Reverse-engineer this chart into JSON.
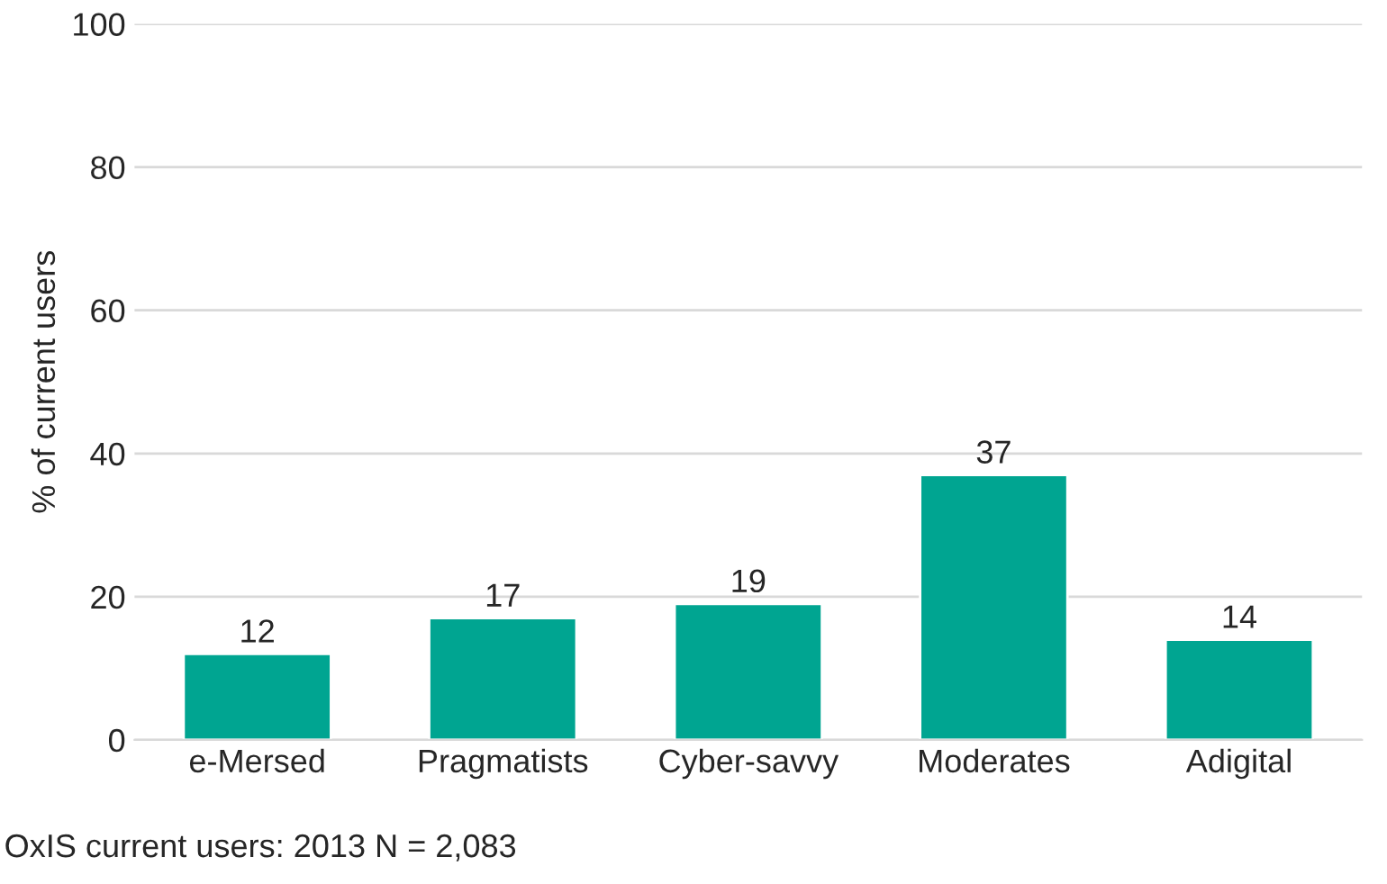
{
  "chart_data": {
    "type": "bar",
    "ylabel": "% of current users",
    "categories": [
      "e-Mersed",
      "Pragmatists",
      "Cyber-savvy",
      "Moderates",
      "Adigital"
    ],
    "values": [
      12,
      17,
      19,
      37,
      14
    ],
    "color": "#00a591",
    "ylim": [
      0,
      100
    ],
    "yticks": [
      0,
      20,
      40,
      60,
      80,
      100
    ],
    "grid": "y",
    "data_labels": true,
    "annotations": [
      "OxIS current users: 2013 N = 2,083"
    ]
  }
}
